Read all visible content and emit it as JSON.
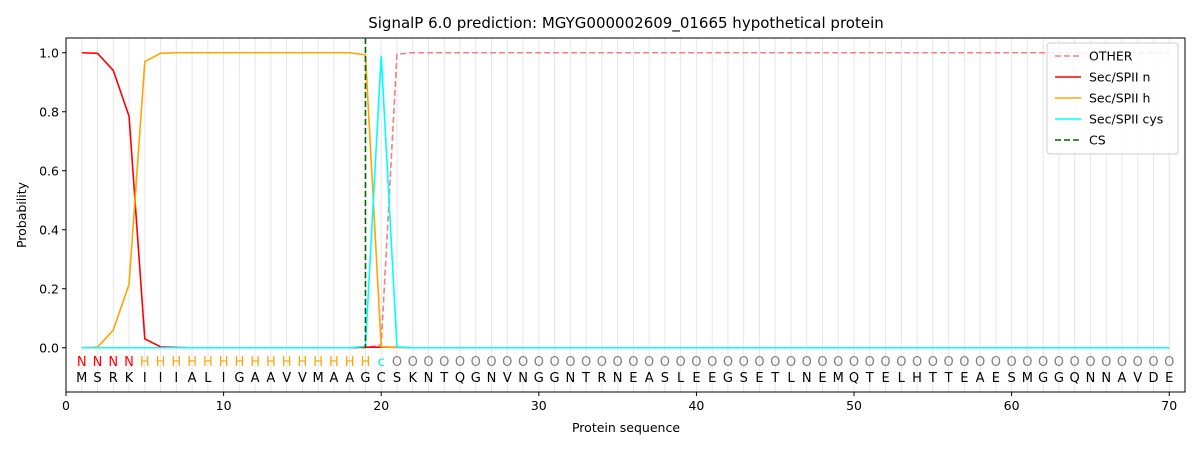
{
  "chart_data": {
    "type": "line",
    "title": "SignalP 6.0 prediction: MGYG000002609_01665 hypothetical protein",
    "xlabel": "Protein sequence",
    "ylabel": "Probability",
    "xlim": [
      0,
      71
    ],
    "ylim": [
      -0.15,
      1.05
    ],
    "x_ticks": [
      0,
      10,
      20,
      30,
      40,
      50,
      60,
      70
    ],
    "y_ticks": [
      0.0,
      0.2,
      0.4,
      0.6,
      0.8,
      1.0
    ],
    "legend_position": "top-right",
    "sequence": "MSRKIIIALIGAAVVMAAGCSKNTQGNVNGGNTRNEASLEEGSETLNEMQTELHTTEAESMGGQNNAVDE",
    "states": "NNNNHHHHHHHHHHHHHHHcOOOOOOOOOOOOOOOOOOOOOOOOOOOOOOOOOOOOOOOOOOOOOOOOOO",
    "state_colors": {
      "N": "#ff0000",
      "H": "#ffa500",
      "c": "#00e5ee",
      "O": "#808080"
    },
    "cleavage_site": 19,
    "series": [
      {
        "name": "OTHER",
        "color": "#f08080",
        "dash": "dashed",
        "values": [
          0,
          0,
          0,
          0,
          0,
          0,
          0,
          0,
          0,
          0,
          0,
          0,
          0,
          0,
          0,
          0,
          0,
          0,
          0,
          0.01,
          0.995,
          1,
          1,
          1,
          1,
          1,
          1,
          1,
          1,
          1,
          1,
          1,
          1,
          1,
          1,
          1,
          1,
          1,
          1,
          1,
          1,
          1,
          1,
          1,
          1,
          1,
          1,
          1,
          1,
          1,
          1,
          1,
          1,
          1,
          1,
          1,
          1,
          1,
          1,
          1,
          1,
          1,
          1,
          1,
          1,
          1,
          1,
          1,
          1,
          1
        ]
      },
      {
        "name": "Sec/SPII n",
        "color": "#ff0000",
        "dash": "solid",
        "values": [
          1.0,
          0.998,
          0.94,
          0.785,
          0.03,
          0.003,
          0.001,
          0,
          0,
          0,
          0,
          0,
          0,
          0,
          0,
          0,
          0,
          0,
          0.002,
          0.002,
          0.002,
          0,
          0,
          0,
          0,
          0,
          0,
          0,
          0,
          0,
          0,
          0,
          0,
          0,
          0,
          0,
          0,
          0,
          0,
          0,
          0,
          0,
          0,
          0,
          0,
          0,
          0,
          0,
          0,
          0,
          0,
          0,
          0,
          0,
          0,
          0,
          0,
          0,
          0,
          0,
          0,
          0,
          0,
          0,
          0,
          0,
          0,
          0,
          0,
          0
        ]
      },
      {
        "name": "Sec/SPII h",
        "color": "#ffa500",
        "dash": "solid",
        "values": [
          0,
          0.002,
          0.06,
          0.215,
          0.97,
          0.998,
          1.0,
          1.0,
          1.0,
          1.0,
          1.0,
          1.0,
          1.0,
          1.0,
          1.0,
          1.0,
          1.0,
          1.0,
          0.993,
          0.003,
          0.001,
          0,
          0,
          0,
          0,
          0,
          0,
          0,
          0,
          0,
          0,
          0,
          0,
          0,
          0,
          0,
          0,
          0,
          0,
          0,
          0,
          0,
          0,
          0,
          0,
          0,
          0,
          0,
          0,
          0,
          0,
          0,
          0,
          0,
          0,
          0,
          0,
          0,
          0,
          0,
          0,
          0,
          0,
          0,
          0,
          0,
          0,
          0,
          0,
          0
        ]
      },
      {
        "name": "Sec/SPII cys",
        "color": "#00ffff",
        "dash": "solid",
        "values": [
          0,
          0,
          0,
          0,
          0,
          0,
          0,
          0,
          0,
          0,
          0,
          0,
          0,
          0,
          0,
          0,
          0,
          0,
          0.005,
          0.99,
          0.003,
          0,
          0,
          0,
          0,
          0,
          0,
          0,
          0,
          0,
          0,
          0,
          0,
          0,
          0,
          0,
          0,
          0,
          0,
          0,
          0,
          0,
          0,
          0,
          0,
          0,
          0,
          0,
          0,
          0,
          0,
          0,
          0,
          0,
          0,
          0,
          0,
          0,
          0,
          0,
          0,
          0,
          0,
          0,
          0,
          0,
          0,
          0,
          0,
          0
        ]
      }
    ],
    "cs_series": {
      "name": "CS",
      "color": "#006400",
      "dash": "dashed"
    }
  }
}
